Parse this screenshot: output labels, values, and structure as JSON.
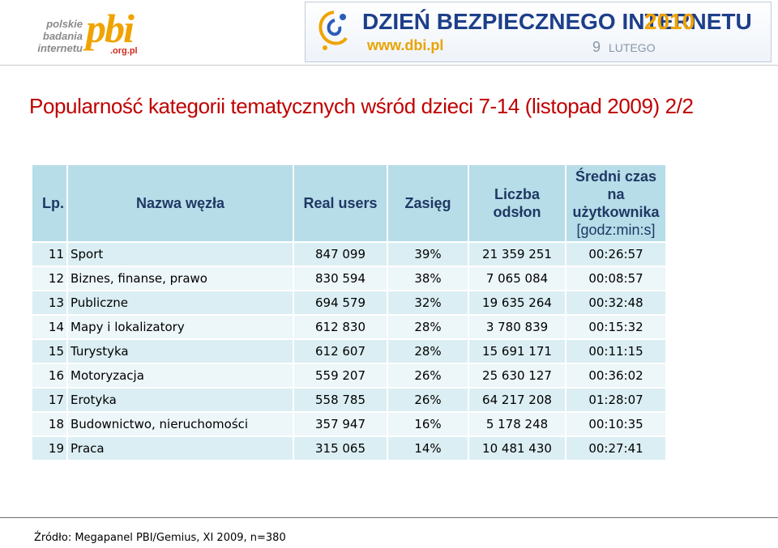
{
  "logo_pbi": {
    "word_1": "polskie",
    "word_2": "badania",
    "word_3": "internetu",
    "mark": "pbi",
    "domain": ".org.pl"
  },
  "banner": {
    "title": "DZIEŃ BEZPIECZNEGO INTERNETU",
    "year": "2010",
    "url": "www.dbi.pl",
    "date_day": "9",
    "date_month": "LUTEGO"
  },
  "title": "Popularność kategorii tematycznych wśród dzieci 7-14 (listopad 2009) 2/2",
  "table": {
    "headers": {
      "lp": "Lp.",
      "name": "Nazwa węzła",
      "real_users": "Real users",
      "reach": "Zasięg",
      "views_1": "Liczba",
      "views_2": "odsłon",
      "time_1": "Średni czas",
      "time_2": "na",
      "time_3": "użytkownika",
      "time_4": "[godz:min:s]"
    },
    "rows": [
      [
        "11",
        "Sport",
        "847 099",
        "39%",
        "21 359 251",
        "00:26:57"
      ],
      [
        "12",
        "Biznes, finanse, prawo",
        "830 594",
        "38%",
        "7 065 084",
        "00:08:57"
      ],
      [
        "13",
        "Publiczne",
        "694 579",
        "32%",
        "19 635 264",
        "00:32:48"
      ],
      [
        "14",
        "Mapy i lokalizatory",
        "612 830",
        "28%",
        "3 780 839",
        "00:15:32"
      ],
      [
        "15",
        "Turystyka",
        "612 607",
        "28%",
        "15 691 171",
        "00:11:15"
      ],
      [
        "16",
        "Motoryzacja",
        "559 207",
        "26%",
        "25 630 127",
        "00:36:02"
      ],
      [
        "17",
        "Erotyka",
        "558 785",
        "26%",
        "64 217 208",
        "01:28:07"
      ],
      [
        "18",
        "Budownictwo, nieruchomości",
        "357 947",
        "16%",
        "5 178 248",
        "00:10:35"
      ],
      [
        "19",
        "Praca",
        "315 065",
        "14%",
        "10 481 430",
        "00:27:41"
      ]
    ]
  },
  "source": "Źródło: Megapanel PBI/Gemius, XI 2009, n=380"
}
